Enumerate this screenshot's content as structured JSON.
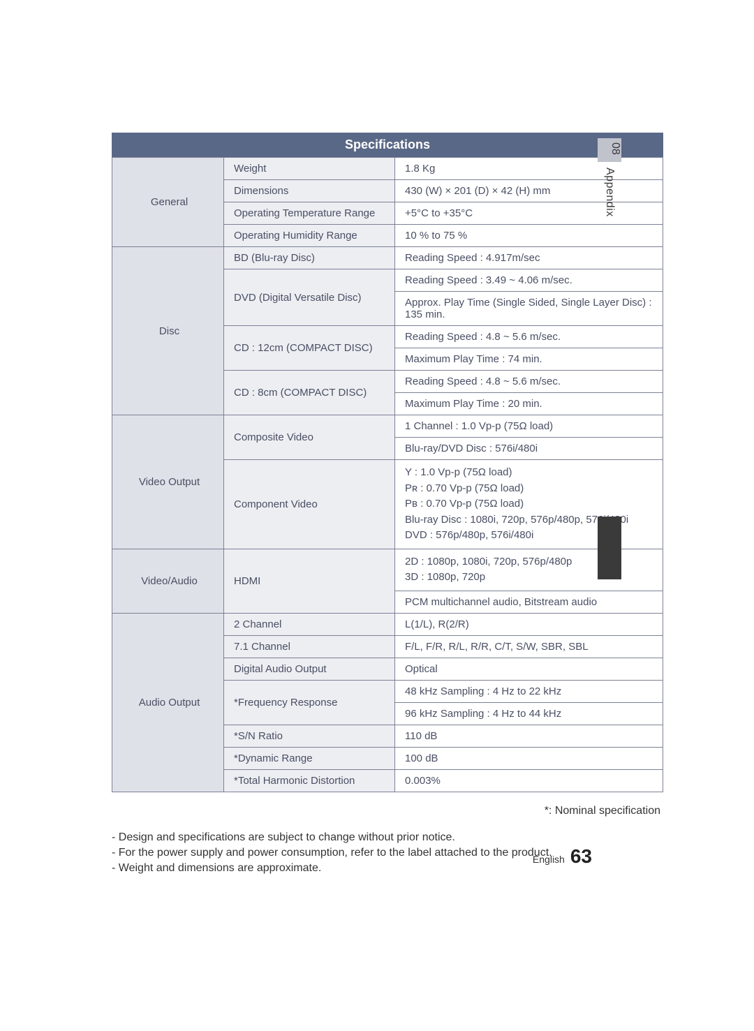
{
  "side_tab": {
    "num": "08",
    "label": "Appendix"
  },
  "title": "Specifications",
  "general": {
    "category": "General",
    "rows": {
      "weight": {
        "item": "Weight",
        "value": "1.8 Kg"
      },
      "dimensions": {
        "item": "Dimensions",
        "value": "430 (W) × 201 (D) × 42 (H) mm"
      },
      "opTemp": {
        "item": "Operating Temperature Range",
        "value": "+5°C to +35°C"
      },
      "opHum": {
        "item": "Operating Humidity Range",
        "value": "10 % to 75 %"
      }
    }
  },
  "disc": {
    "category": "Disc",
    "rows": {
      "bd": {
        "item": "BD (Blu-ray Disc)",
        "value": "Reading Speed : 4.917m/sec"
      },
      "dvd": {
        "item": "DVD (Digital Versatile Disc)",
        "v1": "Reading Speed : 3.49 ~ 4.06 m/sec.",
        "v2": "Approx. Play Time (Single Sided, Single Layer Disc) : 135 min."
      },
      "cd12": {
        "item": "CD : 12cm (COMPACT DISC)",
        "v1": "Reading Speed : 4.8 ~ 5.6 m/sec.",
        "v2": "Maximum Play Time : 74 min."
      },
      "cd8": {
        "item": "CD : 8cm (COMPACT DISC)",
        "v1": "Reading Speed : 4.8 ~ 5.6 m/sec.",
        "v2": "Maximum Play Time : 20 min."
      }
    }
  },
  "video_output": {
    "category": "Video Output",
    "rows": {
      "composite": {
        "item": "Composite Video",
        "v1": "1 Channel : 1.0 Vp-p (75Ω load)",
        "v2": "Blu-ray/DVD Disc : 576i/480i"
      },
      "component": {
        "item": "Component Video",
        "l1": "Y  : 1.0 Vp-p (75Ω load)",
        "l2": "Pʀ : 0.70 Vp-p (75Ω load)",
        "l3": "Pʙ : 0.70 Vp-p (75Ω load)",
        "l4": "Blu-ray Disc : 1080i, 720p, 576p/480p, 576i/480i",
        "l5": "DVD : 576p/480p, 576i/480i"
      }
    }
  },
  "video_audio": {
    "category": "Video/Audio",
    "rows": {
      "hdmi": {
        "item": "HDMI",
        "l1": "2D : 1080p, 1080i, 720p, 576p/480p",
        "l2": "3D : 1080p, 720p",
        "v2": "PCM multichannel audio, Bitstream audio"
      }
    }
  },
  "audio_output": {
    "category": "Audio Output",
    "rows": {
      "ch2": {
        "item": "2 Channel",
        "value": "L(1/L), R(2/R)"
      },
      "ch71": {
        "item": "7.1 Channel",
        "value": "F/L, F/R, R/L, R/R, C/T, S/W, SBR, SBL"
      },
      "dao": {
        "item": "Digital Audio Output",
        "value": "Optical"
      },
      "freq": {
        "item": "*Frequency Response",
        "v1": "48 kHz Sampling : 4 Hz to 22 kHz",
        "v2": "96 kHz Sampling : 4 Hz to 44 kHz"
      },
      "sn": {
        "item": "*S/N Ratio",
        "value": "110 dB"
      },
      "dyn": {
        "item": "*Dynamic Range",
        "value": "100 dB"
      },
      "thd": {
        "item": "*Total Harmonic Distortion",
        "value": "0.003%"
      }
    }
  },
  "footer": {
    "nominal": "*: Nominal specification",
    "notes": {
      "n1": "Design and specifications are subject to change without prior notice.",
      "n2": "For the power supply and power consumption, refer to the label attached to the product.",
      "n3": "Weight and dimensions are approximate."
    },
    "lang": "English",
    "pageNum": "63"
  },
  "colors": {
    "title_bg": "#5a6887",
    "cat_bg": "#dfe1e8",
    "item_bg": "#eceef2",
    "border": "#7c8094",
    "side_tab_bg": "#c0c2cc"
  }
}
